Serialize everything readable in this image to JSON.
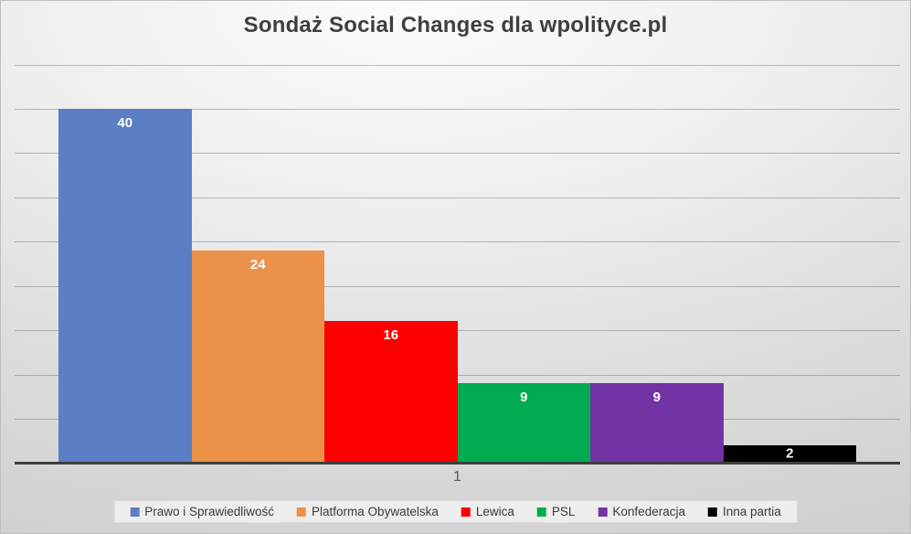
{
  "title": "Sondaż Social Changes dla wpolityce.pl",
  "chart_data": {
    "type": "bar",
    "title": "Sondaż Social Changes dla wpolityce.pl",
    "categories": [
      "1"
    ],
    "series": [
      {
        "name": "Prawo i Sprawiedliwość",
        "values": [
          40
        ],
        "color": "#5B7EC5"
      },
      {
        "name": "Platforma Obywatelska",
        "values": [
          24
        ],
        "color": "#EC9149"
      },
      {
        "name": "Lewica",
        "values": [
          16
        ],
        "color": "#FE0000"
      },
      {
        "name": "PSL",
        "values": [
          9
        ],
        "color": "#00AC50"
      },
      {
        "name": "Konfederacja",
        "values": [
          9
        ],
        "color": "#7233A5"
      },
      {
        "name": "Inna partia",
        "values": [
          2
        ],
        "color": "#000000"
      }
    ],
    "xlabel": "",
    "ylabel": "",
    "ylim": [
      0,
      45
    ],
    "grid_step": 5,
    "grid": true,
    "y_tick_labels_visible": false,
    "legend_position": "bottom",
    "data_labels": "inside-end",
    "data_label_color": "#FFFFFF",
    "axis_color": "#3F3F3F",
    "gridline_color": "#6E6E6E",
    "legend_background": "#EDEDED",
    "title_color": "#3F3F3F",
    "category_label_color": "#595959"
  }
}
